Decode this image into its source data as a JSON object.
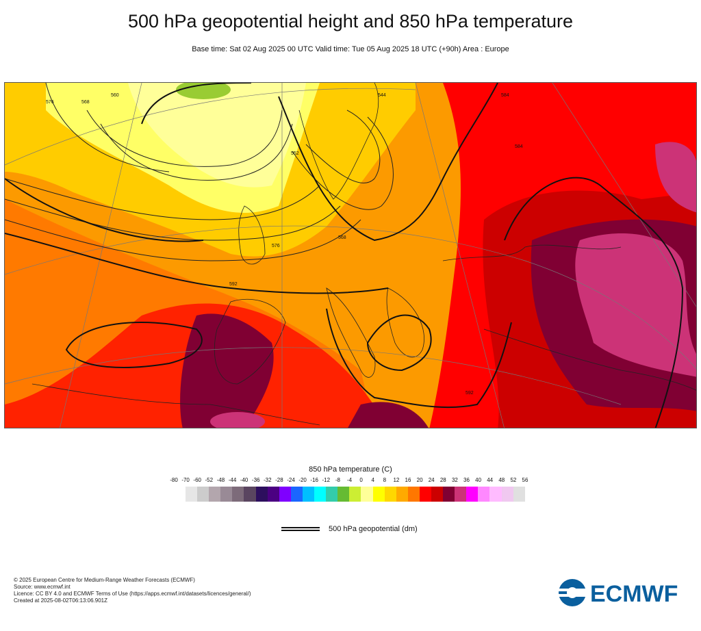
{
  "header": {
    "title": "500 hPa geopotential height and 850 hPa temperature",
    "subtitle": "Base time: Sat 02 Aug 2025 00 UTC Valid time: Tue 05 Aug 2025 18 UTC (+90h) Area : Europe"
  },
  "map": {
    "contour_labels": [
      "576",
      "568",
      "560",
      "552",
      "544",
      "568",
      "576",
      "584",
      "592",
      "584",
      "592"
    ],
    "colors": {
      "cold_yellow": "#ffff66",
      "pale_yellow": "#ffff99",
      "orange": "#fc9a00",
      "dark_orange": "#ff7a00",
      "red": "#ff0000",
      "dark_red": "#cc0000",
      "maroon": "#800033",
      "pink": "#cc3377"
    }
  },
  "colorbar": {
    "title": "850 hPa temperature (C)",
    "ticks": [
      "-80",
      "-70",
      "-60",
      "-52",
      "-48",
      "-44",
      "-40",
      "-36",
      "-32",
      "-28",
      "-24",
      "-20",
      "-16",
      "-12",
      "-8",
      "-4",
      "0",
      "4",
      "8",
      "12",
      "16",
      "20",
      "24",
      "28",
      "32",
      "36",
      "40",
      "44",
      "48",
      "52",
      "56"
    ],
    "colors": [
      "#e6e6e6",
      "#cccccc",
      "#b3a6ad",
      "#998a96",
      "#7d6b7a",
      "#5a4560",
      "#2d0f5e",
      "#4b0082",
      "#7f00ff",
      "#1a66ff",
      "#00bfff",
      "#00ffff",
      "#33ccaa",
      "#66bb33",
      "#ccee33",
      "#ffff99",
      "#ffff00",
      "#ffd700",
      "#ffaa00",
      "#ff7700",
      "#ff0000",
      "#cc0000",
      "#800033",
      "#cc3377",
      "#ff00ff",
      "#ff88ff",
      "#ffbbff",
      "#f0c8f0",
      "#e0e0e0"
    ]
  },
  "legend": {
    "label": "500 hPa geopotential (dm)"
  },
  "footer": {
    "line1": "© 2025 European Centre for Medium-Range Weather Forecasts (ECMWF)",
    "line2": "Source: www.ecmwf.int",
    "line3": "Licence: CC BY 4.0 and ECMWF Terms of Use (https://apps.ecmwf.int/datasets/licences/general/)",
    "line4": "Created at 2025-08-02T06:13:06.901Z"
  },
  "logo": {
    "text": "ECMWF",
    "color": "#0a5f9e"
  }
}
